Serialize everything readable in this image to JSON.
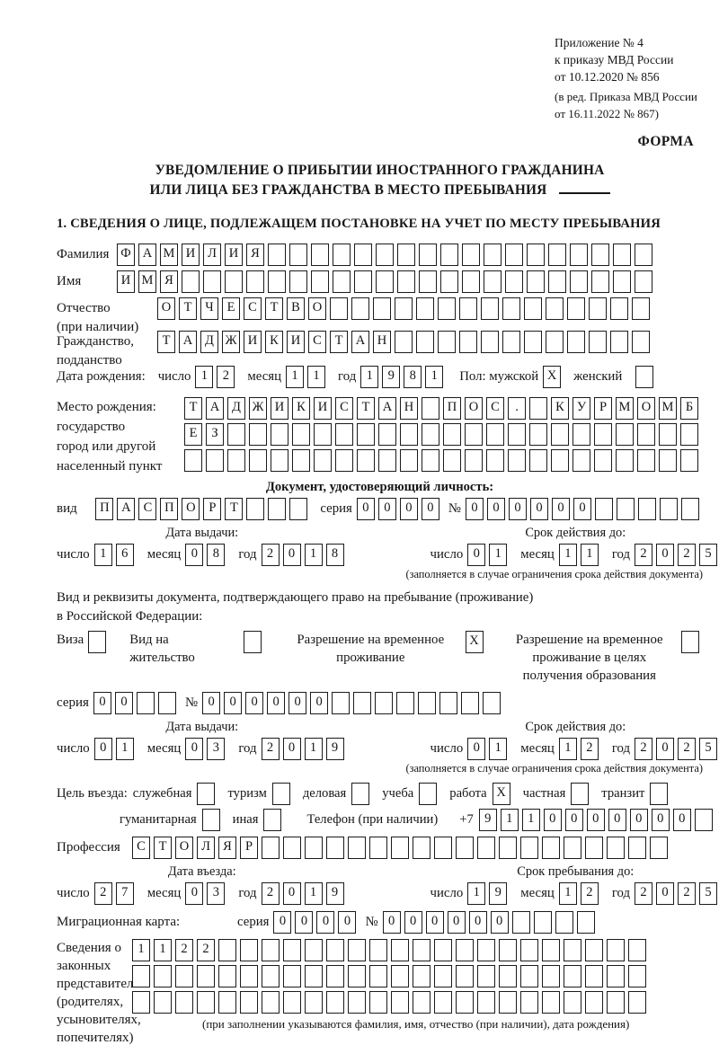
{
  "labels": {
    "day": "число",
    "month": "месяц",
    "year": "год"
  },
  "page": {
    "annex": [
      "Приложение № 4",
      "к приказу МВД России",
      "от 10.12.2020 № 856"
    ],
    "annex_edit": [
      "(в ред. Приказа МВД России",
      "от 16.11.2022 № 867)"
    ],
    "form_label": "ФОРМА",
    "title_line1": "УВЕДОМЛЕНИЕ О ПРИБЫТИИ ИНОСТРАННОГО ГРАЖДАНИНА",
    "title_line2": "ИЛИ ЛИЦА БЕЗ ГРАЖДАНСТВА В МЕСТО ПРЕБЫВАНИЯ",
    "section1_heading": "1. СВЕДЕНИЯ О ЛИЦЕ, ПОДЛЕЖАЩЕМ ПОСТАНОВКЕ НА УЧЕТ ПО МЕСТУ ПРЕБЫВАНИЯ"
  },
  "fields": {
    "surname": {
      "label": "Фамилия",
      "value": "ФАМИЛИЯ",
      "cells": 25
    },
    "name": {
      "label": "Имя",
      "value": "ИМЯ",
      "cells": 25
    },
    "patronymic": {
      "label": "Отчество",
      "label2": "(при наличии)",
      "value": "ОТЧЕСТВО",
      "cells": 23
    },
    "citizenship": {
      "label": "Гражданство,",
      "label2": "подданство",
      "value": "ТАДЖИКИСТАН",
      "cells": 23
    },
    "birth_date": {
      "label": "Дата рождения:",
      "day": {
        "value": "12",
        "cells": 2
      },
      "month": {
        "value": "11",
        "cells": 2
      },
      "year": {
        "value": "1981",
        "cells": 4
      },
      "sex_label": "Пол: мужской",
      "male": {
        "value": "X",
        "cells": 1
      },
      "female_label": "женский",
      "female": {
        "value": "",
        "cells": 1
      }
    },
    "birth_place": {
      "label_lines": [
        "Место рождения:",
        "государство",
        "город или другой",
        "населенный пункт"
      ],
      "rows": [
        {
          "value": "ТАДЖИКИСТАН ПОС. КУРМОМБ",
          "cells": 24
        },
        {
          "value": "ЕЗ",
          "cells": 24
        },
        {
          "value": "",
          "cells": 24
        }
      ]
    },
    "profession": {
      "label": "Профессия",
      "value": "СТОЛЯР",
      "cells": 25
    }
  },
  "identity_doc": {
    "heading": "Документ, удостоверяющий личность:",
    "kind_label": "вид",
    "kind": {
      "value": "ПАСПОРТ",
      "cells": 10
    },
    "series_label": "серия",
    "series": {
      "value": "0000",
      "cells": 4
    },
    "number_label": "№",
    "number": {
      "value": "000000",
      "cells": 11
    }
  },
  "identity_dates": {
    "issue_caption": "Дата выдачи:",
    "issue_day": {
      "value": "16",
      "cells": 2
    },
    "issue_month": {
      "value": "08",
      "cells": 2
    },
    "issue_year": {
      "value": "2018",
      "cells": 4
    },
    "expiry_caption": "Срок действия до:",
    "expiry_day": {
      "value": "01",
      "cells": 2
    },
    "expiry_month": {
      "value": "11",
      "cells": 2
    },
    "expiry_year": {
      "value": "2025",
      "cells": 4
    },
    "note": "(заполняется в случае ограничения срока действия документа)"
  },
  "residence": {
    "intro_line1": "Вид и реквизиты документа, подтверждающего право на пребывание (проживание)",
    "intro_line2": "в Российской Федерации:",
    "options": [
      {
        "label": "Виза",
        "box": {
          "value": "",
          "cells": 1
        }
      },
      {
        "label": "Вид на жительство",
        "box": {
          "value": "",
          "cells": 1
        }
      },
      {
        "label": "Разрешение на временное проживание",
        "box": {
          "value": "X",
          "cells": 1
        }
      },
      {
        "label": "Разрешение на временное проживание в целях получения образования",
        "box": {
          "value": "",
          "cells": 1
        }
      }
    ],
    "series_label": "серия",
    "series": {
      "value": "00",
      "cells": 4
    },
    "number_label": "№",
    "number": {
      "value": "000000",
      "cells": 14
    }
  },
  "residence_dates": {
    "issue_caption": "Дата выдачи:",
    "issue_day": {
      "value": "01",
      "cells": 2
    },
    "issue_month": {
      "value": "03",
      "cells": 2
    },
    "issue_year": {
      "value": "2019",
      "cells": 4
    },
    "expiry_caption": "Срок действия до:",
    "expiry_day": {
      "value": "01",
      "cells": 2
    },
    "expiry_month": {
      "value": "12",
      "cells": 2
    },
    "expiry_year": {
      "value": "2025",
      "cells": 4
    },
    "note": "(заполняется в случае ограничения срока действия документа)"
  },
  "purpose": {
    "label": "Цель въезда:",
    "options": [
      {
        "label": "служебная",
        "box": {
          "value": "",
          "cells": 1
        }
      },
      {
        "label": "туризм",
        "box": {
          "value": "",
          "cells": 1
        }
      },
      {
        "label": "деловая",
        "box": {
          "value": "",
          "cells": 1
        }
      },
      {
        "label": "учеба",
        "box": {
          "value": "",
          "cells": 1
        }
      },
      {
        "label": "работа",
        "box": {
          "value": "X",
          "cells": 1
        }
      },
      {
        "label": "частная",
        "box": {
          "value": "",
          "cells": 1
        }
      },
      {
        "label": "транзит",
        "box": {
          "value": "",
          "cells": 1
        }
      }
    ],
    "options2": [
      {
        "label": "гуманитарная",
        "box": {
          "value": "",
          "cells": 1
        }
      },
      {
        "label": "иная",
        "box": {
          "value": "",
          "cells": 1
        }
      }
    ],
    "phone_label": "Телефон (при наличии)",
    "phone_prefix": "+7",
    "phone": {
      "value": "9110000000",
      "cells": 11
    }
  },
  "entry_dates": {
    "entry_caption": "Дата въезда:",
    "entry_day": {
      "value": "27",
      "cells": 2
    },
    "entry_month": {
      "value": "03",
      "cells": 2
    },
    "entry_year": {
      "value": "2019",
      "cells": 4
    },
    "stay_caption": "Срок пребывания до:",
    "stay_day": {
      "value": "19",
      "cells": 2
    },
    "stay_month": {
      "value": "12",
      "cells": 2
    },
    "stay_year": {
      "value": "2025",
      "cells": 4
    }
  },
  "migration_card": {
    "label": "Миграционная карта:",
    "series_label": "серия",
    "series": {
      "value": "0000",
      "cells": 4
    },
    "number_label": "№",
    "number": {
      "value": "000000",
      "cells": 10
    }
  },
  "legal_reps": {
    "label_lines": [
      "Сведения о",
      "законных",
      "представителях",
      "(родителях,",
      "усыновителях,",
      "попечителях)"
    ],
    "rows": [
      {
        "value": "1122",
        "cells": 24
      },
      {
        "value": "",
        "cells": 24
      },
      {
        "value": "",
        "cells": 24
      }
    ],
    "note": "(при заполнении указываются фамилия, имя, отчество (при наличии), дата рождения)"
  }
}
